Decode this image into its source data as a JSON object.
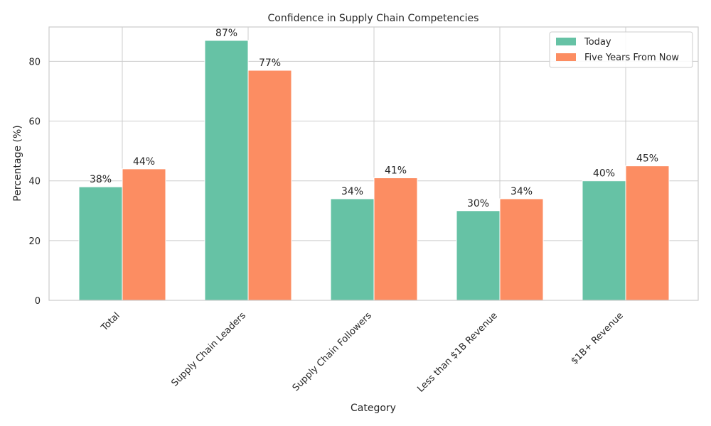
{
  "chart_data": {
    "type": "bar",
    "title": "Confidence in Supply Chain Competencies",
    "xlabel": "Category",
    "ylabel": "Percentage (%)",
    "categories": [
      "Total",
      "Supply Chain Leaders",
      "Supply Chain Followers",
      "Less than $1B Revenue",
      "$1B+ Revenue"
    ],
    "series": [
      {
        "name": "Today",
        "values": [
          38,
          87,
          34,
          30,
          40
        ],
        "color": "#66c2a5"
      },
      {
        "name": "Five Years From Now",
        "values": [
          44,
          77,
          41,
          34,
          45
        ],
        "color": "#fc8d62"
      }
    ],
    "value_suffix": "%",
    "yticks": [
      0,
      20,
      40,
      60,
      80
    ],
    "ylim": [
      0,
      91.5
    ],
    "grid": true,
    "legend_position": "top-right"
  }
}
